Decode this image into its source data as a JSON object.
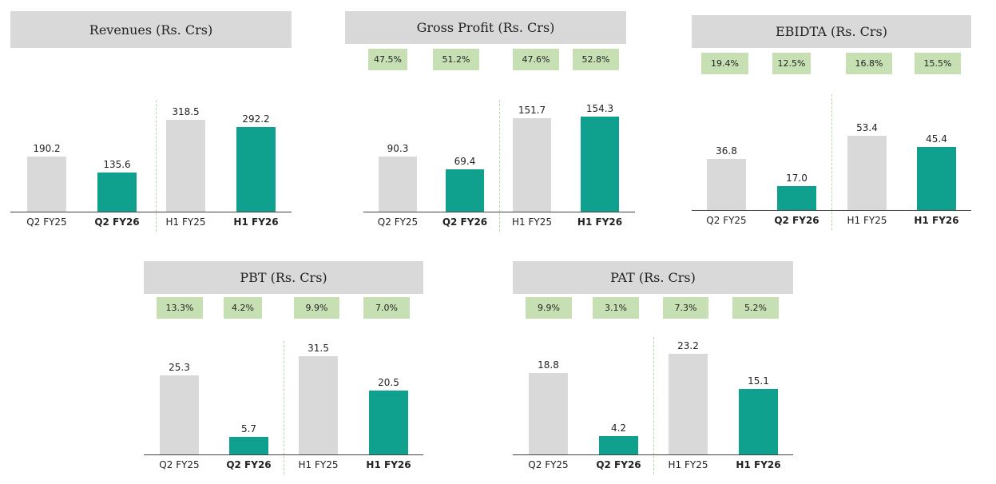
{
  "colors": {
    "prior": "#d9d9d9",
    "current": "#0fa08e",
    "badge": "#c6e0b4",
    "title_bg": "#d9d9d9"
  },
  "chart_data": [
    {
      "type": "bar",
      "title": "Revenues (Rs. Crs)",
      "categories": [
        "Q2 FY25",
        "Q2 FY26",
        "H1 FY25",
        "H1 FY26"
      ],
      "values": [
        190.2,
        135.6,
        318.5,
        292.2
      ],
      "value_labels": [
        "190.2",
        "135.6",
        "318.5",
        "292.2"
      ],
      "margins": [],
      "ylim": [
        0,
        400
      ]
    },
    {
      "type": "bar",
      "title": "Gross Profit (Rs. Crs)",
      "categories": [
        "Q2 FY25",
        "Q2 FY26",
        "H1 FY25",
        "H1 FY26"
      ],
      "values": [
        90.3,
        69.4,
        151.7,
        154.3
      ],
      "value_labels": [
        "90.3",
        "69.4",
        "151.7",
        "154.3"
      ],
      "margins": [
        "47.5%",
        "51.2%",
        "47.6%",
        "52.8%"
      ],
      "ylim": [
        0,
        195
      ]
    },
    {
      "type": "bar",
      "title": "EBIDTA (Rs. Crs)",
      "categories": [
        "Q2 FY25",
        "Q2 FY26",
        "H1 FY25",
        "H1 FY26"
      ],
      "values": [
        36.8,
        17.0,
        53.4,
        45.4
      ],
      "value_labels": [
        "36.8",
        "17.0",
        "53.4",
        "45.4"
      ],
      "margins": [
        "19.4%",
        "12.5%",
        "16.8%",
        "15.5%"
      ],
      "ylim": [
        0,
        80
      ]
    },
    {
      "type": "bar",
      "title": "PBT (Rs. Crs)",
      "categories": [
        "Q2 FY25",
        "Q2 FY26",
        "H1 FY25",
        "H1 FY26"
      ],
      "values": [
        25.3,
        5.7,
        31.5,
        20.5
      ],
      "value_labels": [
        "25.3",
        "5.7",
        "31.5",
        "20.5"
      ],
      "margins": [
        "13.3%",
        "4.2%",
        "9.9%",
        "7.0%"
      ],
      "ylim": [
        0,
        41
      ]
    },
    {
      "type": "bar",
      "title": "PAT (Rs. Crs)",
      "categories": [
        "Q2 FY25",
        "Q2 FY26",
        "H1 FY25",
        "H1 FY26"
      ],
      "values": [
        18.8,
        4.2,
        23.2,
        15.1
      ],
      "value_labels": [
        "18.8",
        "4.2",
        "23.2",
        "15.1"
      ],
      "margins": [
        "9.9%",
        "3.1%",
        "7.3%",
        "5.2%"
      ],
      "ylim": [
        0,
        30
      ]
    }
  ]
}
